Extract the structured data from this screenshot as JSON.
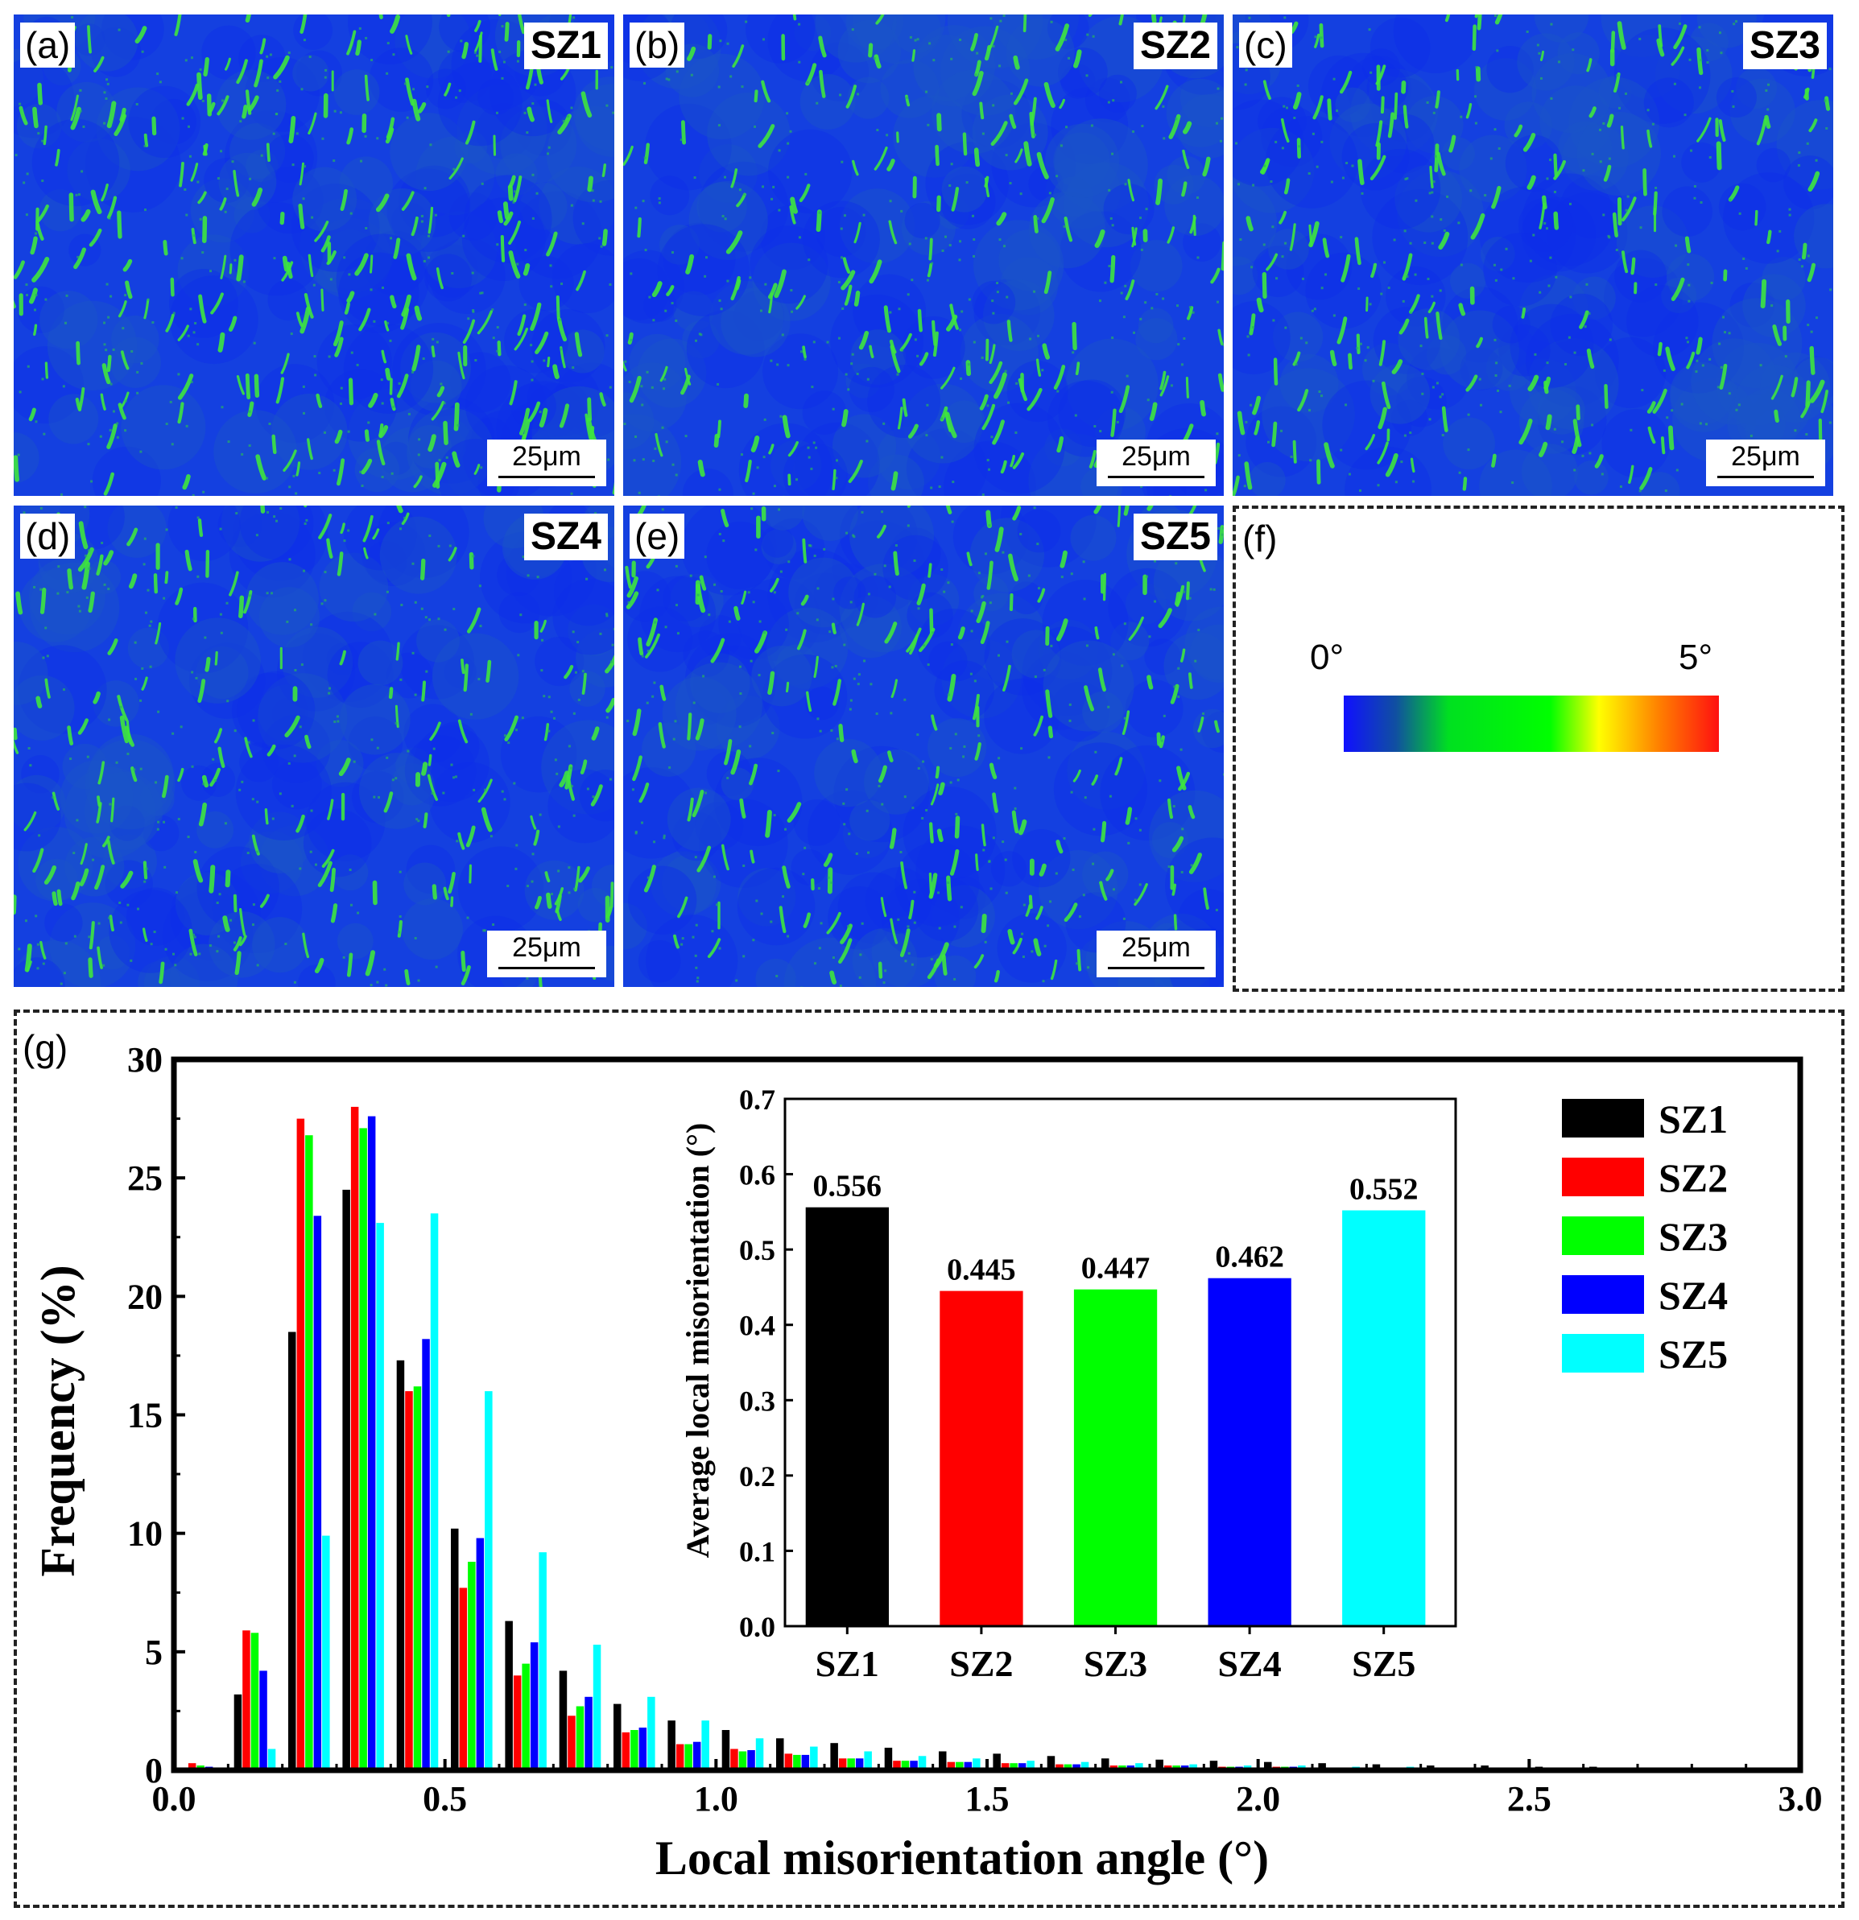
{
  "panels": [
    {
      "label": "(a)",
      "name": "SZ1",
      "scale": "25μm"
    },
    {
      "label": "(b)",
      "name": "SZ2",
      "scale": "25μm"
    },
    {
      "label": "(c)",
      "name": "SZ3",
      "scale": "25μm"
    },
    {
      "label": "(d)",
      "name": "SZ4",
      "scale": "25μm"
    },
    {
      "label": "(e)",
      "name": "SZ5",
      "scale": "25μm"
    }
  ],
  "colorbar": {
    "label": "(f)",
    "min": "0°",
    "max": "5°"
  },
  "colors": {
    "SZ1": "#000000",
    "SZ2": "#ff0000",
    "SZ3": "#00ff00",
    "SZ4": "#0000ff",
    "SZ5": "#00ffff",
    "map_bg": "#1440e0",
    "map_feature": "#3ee63e"
  },
  "chart_data": [
    {
      "panel_label": "(g)",
      "type": "bar",
      "xlabel": "Local misorientation angle (°)",
      "ylabel": "Frequency (%)",
      "xlim": [
        0.0,
        3.0
      ],
      "ylim": [
        0,
        30
      ],
      "xticks": [
        "0.0",
        "0.5",
        "1.0",
        "1.5",
        "2.0",
        "2.5",
        "3.0"
      ],
      "yticks": [
        "0",
        "5",
        "10",
        "15",
        "20",
        "25",
        "30"
      ],
      "bin_centers": [
        0.05,
        0.15,
        0.25,
        0.35,
        0.45,
        0.55,
        0.65,
        0.75,
        0.85,
        0.95,
        1.05,
        1.15,
        1.25,
        1.35,
        1.45,
        1.55,
        1.65,
        1.75,
        1.85,
        1.95,
        2.05,
        2.15,
        2.25,
        2.35,
        2.45,
        2.55,
        2.65,
        2.75,
        2.85,
        2.95
      ],
      "series": [
        {
          "name": "SZ1",
          "values": [
            0.1,
            3.2,
            18.5,
            24.5,
            17.3,
            10.2,
            6.3,
            4.2,
            2.8,
            2.1,
            1.7,
            1.35,
            1.15,
            0.95,
            0.8,
            0.7,
            0.6,
            0.5,
            0.45,
            0.4,
            0.35,
            0.3,
            0.25,
            0.2,
            0.2,
            0.15,
            0.15,
            0.1,
            0.1,
            0.1
          ]
        },
        {
          "name": "SZ2",
          "values": [
            0.3,
            5.9,
            27.5,
            28.0,
            16.0,
            7.7,
            4.0,
            2.3,
            1.6,
            1.1,
            0.9,
            0.7,
            0.5,
            0.4,
            0.35,
            0.3,
            0.25,
            0.2,
            0.2,
            0.15,
            0.15,
            0.1,
            0.1,
            0.1,
            0.1,
            0.1,
            0.1,
            0.1,
            0.1,
            0.1
          ]
        },
        {
          "name": "SZ3",
          "values": [
            0.2,
            5.8,
            26.8,
            27.1,
            16.2,
            8.8,
            4.5,
            2.7,
            1.7,
            1.1,
            0.8,
            0.65,
            0.5,
            0.4,
            0.35,
            0.3,
            0.25,
            0.2,
            0.2,
            0.15,
            0.15,
            0.1,
            0.1,
            0.1,
            0.1,
            0.1,
            0.1,
            0.1,
            0.1,
            0.1
          ]
        },
        {
          "name": "SZ4",
          "values": [
            0.15,
            4.2,
            23.4,
            27.6,
            18.2,
            9.8,
            5.4,
            3.1,
            1.8,
            1.2,
            0.85,
            0.65,
            0.5,
            0.4,
            0.35,
            0.3,
            0.25,
            0.2,
            0.2,
            0.15,
            0.15,
            0.1,
            0.1,
            0.1,
            0.1,
            0.1,
            0.1,
            0.1,
            0.1,
            0.1
          ]
        },
        {
          "name": "SZ5",
          "values": [
            0.1,
            0.9,
            9.9,
            23.1,
            23.5,
            16.0,
            9.2,
            5.3,
            3.1,
            2.1,
            1.35,
            1.0,
            0.8,
            0.6,
            0.5,
            0.4,
            0.35,
            0.3,
            0.25,
            0.2,
            0.2,
            0.15,
            0.15,
            0.1,
            0.1,
            0.1,
            0.1,
            0.1,
            0.1,
            0.1
          ]
        }
      ]
    },
    {
      "type": "bar",
      "title": "inset",
      "categories": [
        "SZ1",
        "SZ2",
        "SZ3",
        "SZ4",
        "SZ5"
      ],
      "values": [
        0.556,
        0.445,
        0.447,
        0.462,
        0.552
      ],
      "value_labels": [
        "0.556",
        "0.445",
        "0.447",
        "0.462",
        "0.552"
      ],
      "ylabel": "Average local misorientation (°)",
      "ylim": [
        0.0,
        0.7
      ],
      "yticks": [
        "0.0",
        "0.1",
        "0.2",
        "0.3",
        "0.4",
        "0.5",
        "0.6",
        "0.7"
      ]
    }
  ]
}
